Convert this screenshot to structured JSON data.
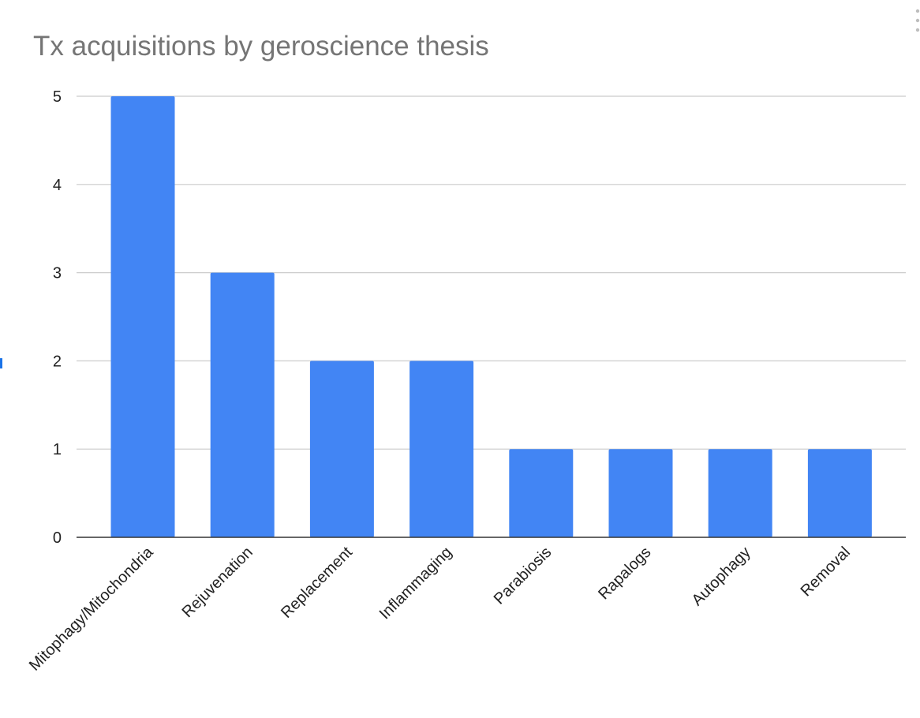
{
  "chart_data": {
    "type": "bar",
    "title": "Tx acquisitions by geroscience thesis",
    "xlabel": "",
    "ylabel": "",
    "categories": [
      "Mitophagy/Mitochondria",
      "Rejuvenation",
      "Replacement",
      "Inflammaging",
      "Parabiosis",
      "Rapalogs",
      "Autophagy",
      "Removal"
    ],
    "values": [
      5,
      3,
      2,
      2,
      1,
      1,
      1,
      1
    ],
    "ylim": [
      0,
      5
    ],
    "yticks": [
      "0",
      "1",
      "2",
      "3",
      "4",
      "5"
    ],
    "grid": true,
    "legend": "none",
    "bar_color": "#4285f4"
  }
}
